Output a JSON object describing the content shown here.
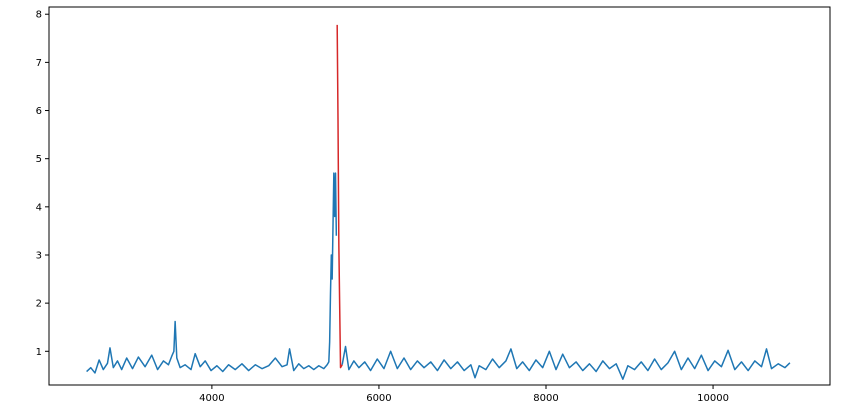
{
  "chart_data": {
    "type": "line",
    "title": "",
    "xlabel": "",
    "ylabel": "",
    "xlim": [
      2050,
      11400
    ],
    "ylim": [
      0.3,
      8.15
    ],
    "grid": false,
    "xticks": [
      4000,
      6000,
      8000,
      10000
    ],
    "yticks": [
      1,
      2,
      3,
      4,
      5,
      6,
      7,
      8
    ],
    "colors": {
      "main": "#1f77b4",
      "highlight": "#d62728"
    },
    "series": [
      {
        "color": "#1f77b4",
        "x": [
          2500,
          2550,
          2600,
          2650,
          2700,
          2750,
          2780,
          2820,
          2870,
          2920,
          2980,
          3050,
          3120,
          3200,
          3280,
          3350,
          3420,
          3480,
          3520,
          3545,
          3560,
          3580,
          3620,
          3680,
          3750,
          3800,
          3860,
          3920,
          3990,
          4060,
          4130,
          4200,
          4280,
          4360,
          4440,
          4520,
          4600,
          4680,
          4760,
          4840,
          4900,
          4930,
          4980,
          5040,
          5100,
          5160,
          5220,
          5280,
          5340,
          5380,
          5400,
          5410,
          5420,
          5430,
          5440,
          5450,
          5460,
          5470,
          5480,
          5490
        ],
        "y": [
          0.58,
          0.66,
          0.55,
          0.82,
          0.62,
          0.75,
          1.07,
          0.66,
          0.8,
          0.62,
          0.86,
          0.64,
          0.88,
          0.68,
          0.92,
          0.62,
          0.8,
          0.72,
          0.9,
          1.0,
          1.62,
          0.86,
          0.66,
          0.72,
          0.62,
          0.95,
          0.68,
          0.8,
          0.6,
          0.7,
          0.58,
          0.72,
          0.62,
          0.74,
          0.6,
          0.72,
          0.64,
          0.7,
          0.86,
          0.68,
          0.72,
          1.05,
          0.6,
          0.74,
          0.64,
          0.7,
          0.62,
          0.7,
          0.64,
          0.72,
          0.78,
          1.2,
          2.2,
          3.0,
          2.5,
          3.6,
          4.7,
          3.8,
          4.7,
          3.4
        ]
      },
      {
        "color": "#d62728",
        "x": [
          5500,
          5510,
          5520,
          5540,
          5560
        ],
        "y": [
          7.78,
          5.8,
          3.2,
          0.66,
          0.72
        ]
      },
      {
        "color": "#1f77b4",
        "x": [
          5560,
          5600,
          5640,
          5700,
          5760,
          5830,
          5900,
          5980,
          6060,
          6140,
          6220,
          6300,
          6380,
          6460,
          6540,
          6620,
          6700,
          6780,
          6860,
          6940,
          7020,
          7100,
          7150,
          7200,
          7280,
          7360,
          7440,
          7520,
          7580,
          7650,
          7720,
          7800,
          7880,
          7960,
          8040,
          8120,
          8200,
          8280,
          8360,
          8440,
          8520,
          8600,
          8680,
          8760,
          8840,
          8920,
          8980,
          9060,
          9140,
          9220,
          9300,
          9380,
          9460,
          9540,
          9620,
          9700,
          9780,
          9860,
          9940,
          10020,
          10100,
          10180,
          10260,
          10340,
          10420,
          10500,
          10580,
          10640,
          10700,
          10780,
          10860,
          10920
        ],
        "y": [
          0.72,
          1.1,
          0.62,
          0.8,
          0.66,
          0.78,
          0.6,
          0.84,
          0.64,
          1.0,
          0.64,
          0.86,
          0.62,
          0.8,
          0.66,
          0.78,
          0.6,
          0.82,
          0.64,
          0.78,
          0.6,
          0.72,
          0.45,
          0.7,
          0.62,
          0.84,
          0.66,
          0.8,
          1.05,
          0.64,
          0.78,
          0.6,
          0.82,
          0.66,
          1.0,
          0.62,
          0.94,
          0.66,
          0.78,
          0.6,
          0.74,
          0.58,
          0.8,
          0.64,
          0.74,
          0.42,
          0.7,
          0.62,
          0.78,
          0.6,
          0.84,
          0.62,
          0.76,
          1.0,
          0.62,
          0.86,
          0.64,
          0.92,
          0.6,
          0.8,
          0.68,
          1.02,
          0.62,
          0.78,
          0.6,
          0.8,
          0.68,
          1.05,
          0.64,
          0.74,
          0.66,
          0.76
        ]
      }
    ]
  }
}
